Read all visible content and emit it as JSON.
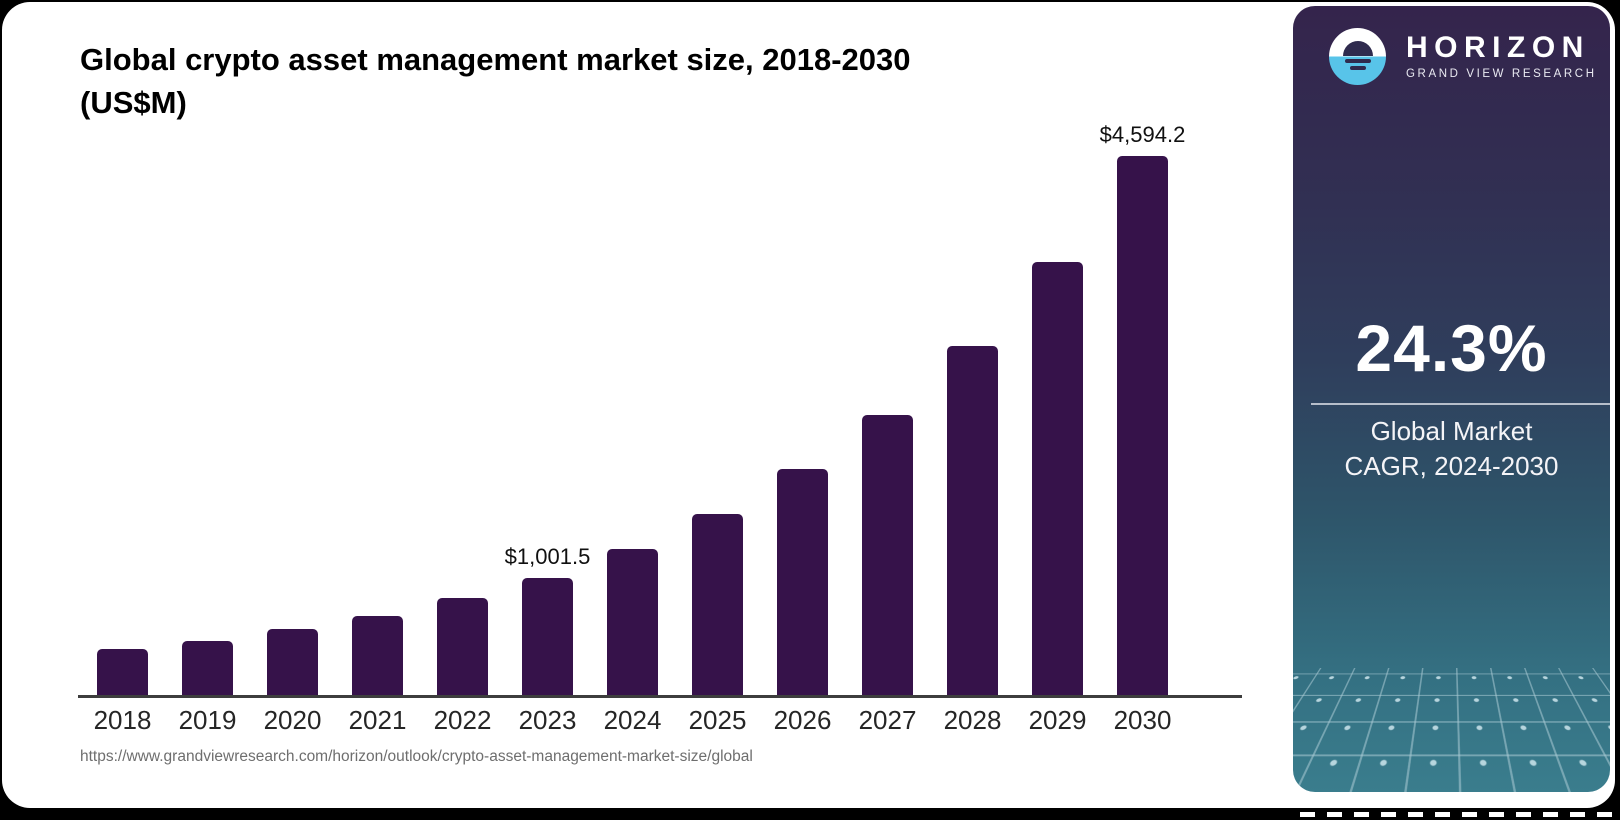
{
  "header": {
    "title_line1": "Global crypto asset management market size, 2018-2030",
    "title_line2": "(US$M)"
  },
  "chart": {
    "source_url": "https://www.grandviewresearch.com/horizon/outlook/crypto-asset-management-market-size/global"
  },
  "chart_data": {
    "type": "bar",
    "title": "Global crypto asset management market size, 2018-2030 (US$M)",
    "xlabel": "",
    "ylabel": "US$M",
    "categories": [
      "2018",
      "2019",
      "2020",
      "2021",
      "2022",
      "2023",
      "2024",
      "2025",
      "2026",
      "2027",
      "2028",
      "2029",
      "2030"
    ],
    "values": [
      390,
      463,
      566,
      678,
      823,
      1001.5,
      1244.9,
      1547.4,
      1923.4,
      2390.8,
      2971.8,
      3693.9,
      4594.2
    ],
    "value_labels": {
      "2023": "$1,001.5",
      "2030": "$4,594.2"
    },
    "ylim": [
      0,
      4594.2
    ],
    "bar_color": "#36124a",
    "grid": "off",
    "legend": "none"
  },
  "sidebar": {
    "logo": {
      "icon": "horizon-sun-logo",
      "brand": "HORIZON",
      "sub_brand": "GRAND VIEW RESEARCH",
      "accent_blue": "#58c4e9"
    },
    "cagr_value": "24.3%",
    "cagr_label_line1": "Global Market",
    "cagr_label_line2": "CAGR, 2024-2030",
    "colors": {
      "top": "#34244c",
      "middle": "#2f3e5c",
      "bottom": "#3a7d8d"
    }
  }
}
